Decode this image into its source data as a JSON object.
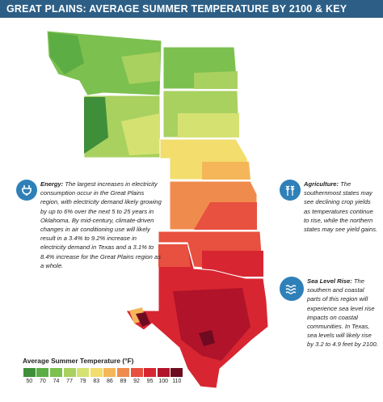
{
  "title": "GREAT PLAINS: AVERAGE SUMMER TEMPERATURE BY 2100 & KEY IMPACTS",
  "callouts": {
    "energy": {
      "icon": "plug-icon",
      "head": "Energy:",
      "body": "The largest increases in electricity consumption occur in the Great Plains region, with electricity demand likely growing by up to 6% over the next 5 to 25 years in Oklahoma. By mid-century, climate-driven changes in air conditioning use will likely result in a 3.4% to 9.2% increase in electricity demand in Texas and a 3.1% to 8.4% increase for the Great Plains region as a whole."
    },
    "agriculture": {
      "icon": "crops-icon",
      "head": "Agriculture:",
      "body": "The southernmost states may see declining crop yields as temperatures continue to rise, while the northern states may see yield gains."
    },
    "sea_level": {
      "icon": "waves-icon",
      "head": "Sea Level Rise:",
      "body": "The southern and coastal parts of this region will experience sea level rise impacts on coastal communities. In Texas, sea levels will likely rise by 3.2 to 4.9 feet by 2100."
    }
  },
  "legend": {
    "title": "Average Summer Temperature (°F)",
    "items": [
      {
        "label": "50",
        "color": "#3f8e3a"
      },
      {
        "label": "70",
        "color": "#5cad44"
      },
      {
        "label": "74",
        "color": "#7cc04f"
      },
      {
        "label": "77",
        "color": "#a8d160"
      },
      {
        "label": "79",
        "color": "#d5e272"
      },
      {
        "label": "83",
        "color": "#f2dd6d"
      },
      {
        "label": "86",
        "color": "#f5b65a"
      },
      {
        "label": "89",
        "color": "#f08b4e"
      },
      {
        "label": "92",
        "color": "#e8503f"
      },
      {
        "label": "95",
        "color": "#d72631"
      },
      {
        "label": "100",
        "color": "#b0132a"
      },
      {
        "label": "110",
        "color": "#6e0b20"
      }
    ]
  }
}
